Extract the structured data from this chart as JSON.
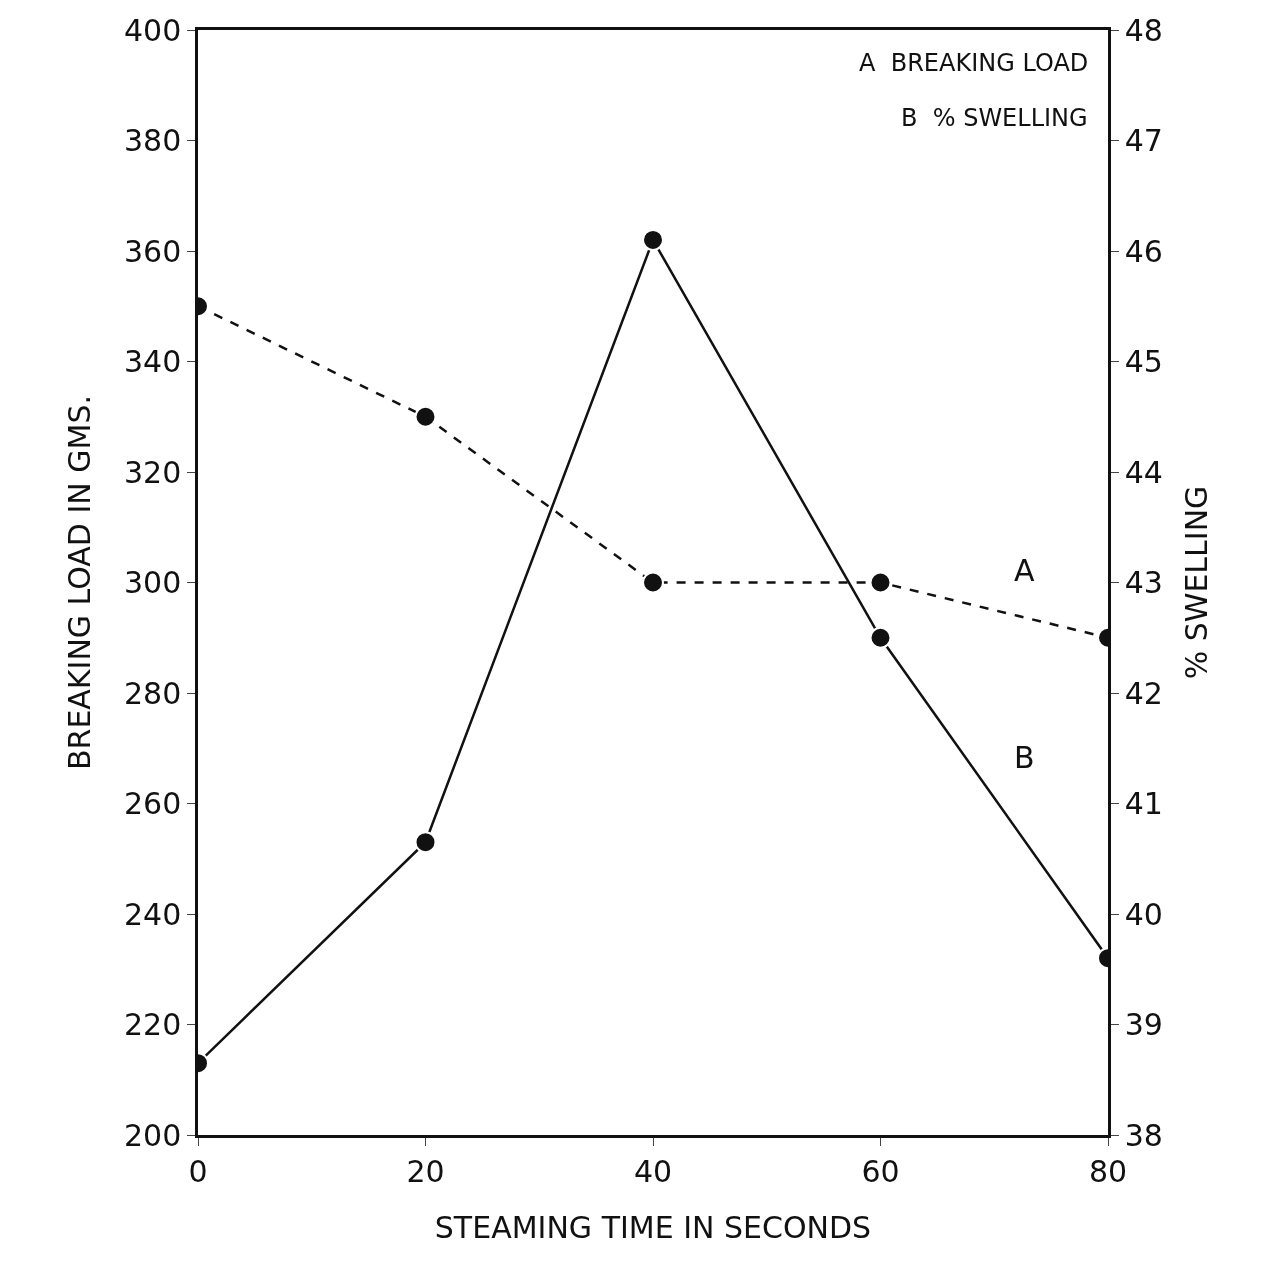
{
  "chart_data": {
    "type": "line",
    "xlabel": "STEAMING TIME IN SECONDS",
    "ylabel": "BREAKING LOAD IN GMS.",
    "y2label": "% SWELLING",
    "x": [
      0,
      20,
      40,
      60,
      80
    ],
    "series": [
      {
        "name": "A",
        "color": "#111111",
        "values": [
          350,
          330,
          300,
          300,
          290
        ],
        "line_style": "dashed"
      },
      {
        "name": "B",
        "color": "#111111",
        "values": [
          38.65,
          40.65,
          46.1,
          42.5,
          39.6
        ],
        "axis": "y2",
        "line_style": "solid"
      }
    ],
    "xlim": [
      0,
      80
    ],
    "xticks": [
      0,
      20,
      40,
      60,
      80
    ],
    "ylim": [
      200,
      400
    ],
    "yticks": [
      200,
      220,
      240,
      260,
      280,
      300,
      320,
      340,
      360,
      380,
      400
    ],
    "y2lim": [
      38,
      48
    ],
    "y2ticks": [
      38,
      39,
      40,
      41,
      42,
      43,
      44,
      45,
      46,
      47,
      48
    ],
    "annotations": [
      "A  BREAKING LOAD",
      "B  % SWELLING"
    ],
    "marker": "circle",
    "grid": false,
    "legend": false
  }
}
